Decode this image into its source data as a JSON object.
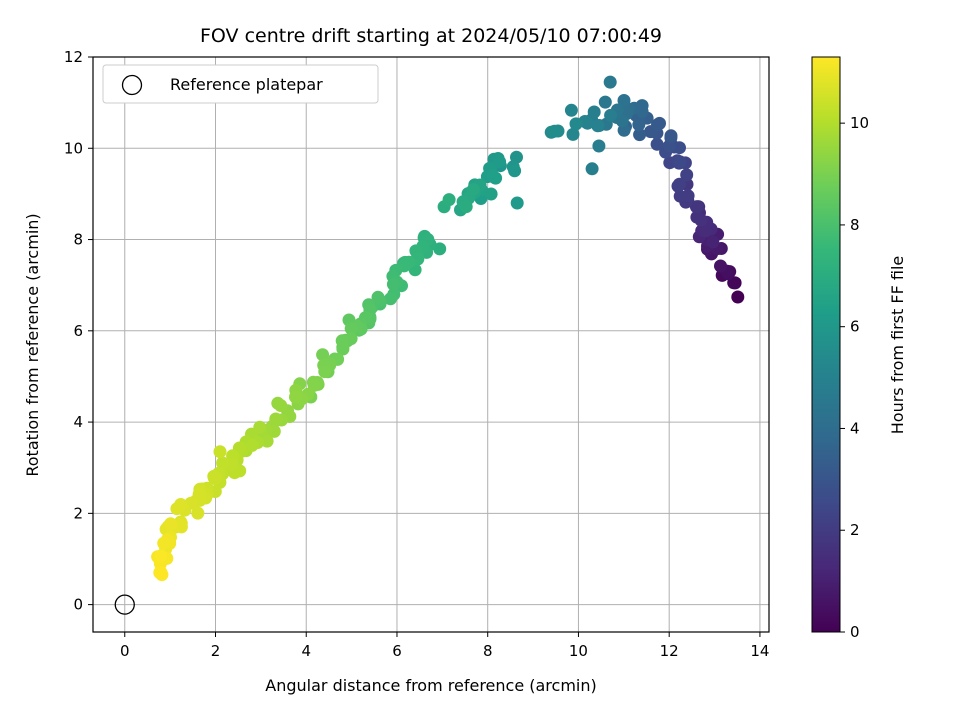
{
  "chart_data": {
    "type": "scatter",
    "title": "FOV centre drift starting at 2024/05/10 07:00:49",
    "xlabel": "Angular distance from reference (arcmin)",
    "ylabel": "Rotation from reference (arcmin)",
    "xlim": [
      -0.7,
      14.2
    ],
    "ylim": [
      -0.6,
      12
    ],
    "xticks": [
      0,
      2,
      4,
      6,
      8,
      10,
      12,
      14
    ],
    "yticks": [
      0,
      2,
      4,
      6,
      8,
      10,
      12
    ],
    "grid": true,
    "legend": {
      "position": "top-left",
      "entries": [
        "Reference platepar"
      ]
    },
    "reference_point": {
      "x": 0,
      "y": 0,
      "marker": "open-circle"
    },
    "colorbar": {
      "label": "Hours from first FF file",
      "colormap": "viridis",
      "range": [
        0,
        11.3
      ],
      "ticks": [
        0,
        2,
        4,
        6,
        8,
        10
      ]
    },
    "viridis_stops": [
      "#440154",
      "#482878",
      "#3e4989",
      "#31688e",
      "#26828e",
      "#1f9e89",
      "#35b779",
      "#6ece58",
      "#b5de2b",
      "#fde725"
    ],
    "segments": [
      {
        "count": 10,
        "x0": 13.45,
        "y0": 6.8,
        "x1": 13.0,
        "y1": 7.7,
        "h0": 0.0,
        "h1": 0.7,
        "jx": 0.2,
        "jy": 0.15
      },
      {
        "count": 10,
        "x0": 13.0,
        "y0": 7.8,
        "x1": 12.7,
        "y1": 8.3,
        "h0": 0.7,
        "h1": 1.4,
        "jx": 0.2,
        "jy": 0.2
      },
      {
        "count": 16,
        "x0": 12.7,
        "y0": 8.4,
        "x1": 12.2,
        "y1": 9.5,
        "h0": 1.4,
        "h1": 2.3,
        "jx": 0.25,
        "jy": 0.25
      },
      {
        "count": 14,
        "x0": 12.3,
        "y0": 9.6,
        "x1": 11.7,
        "y1": 10.4,
        "h0": 2.3,
        "h1": 3.2,
        "jx": 0.25,
        "jy": 0.2
      },
      {
        "count": 20,
        "x0": 11.7,
        "y0": 10.4,
        "x1": 10.7,
        "y1": 10.9,
        "h0": 3.2,
        "h1": 4.5,
        "jx": 0.3,
        "jy": 0.3
      },
      {
        "count": 12,
        "x0": 10.7,
        "y0": 10.6,
        "x1": 9.7,
        "y1": 10.6,
        "h0": 4.5,
        "h1": 5.5,
        "jx": 0.3,
        "jy": 0.3
      },
      {
        "count": 16,
        "x0": 8.5,
        "y0": 9.7,
        "x1": 7.9,
        "y1": 9.2,
        "h0": 5.8,
        "h1": 6.5,
        "jx": 0.25,
        "jy": 0.25
      },
      {
        "count": 10,
        "x0": 7.8,
        "y0": 9.2,
        "x1": 7.2,
        "y1": 8.7,
        "h0": 6.5,
        "h1": 7.1,
        "jx": 0.25,
        "jy": 0.2
      },
      {
        "count": 44,
        "x0": 6.8,
        "y0": 8.0,
        "x1": 4.8,
        "y1": 5.7,
        "h0": 7.1,
        "h1": 8.7,
        "jx": 0.15,
        "jy": 0.22
      },
      {
        "count": 44,
        "x0": 4.8,
        "y0": 5.6,
        "x1": 2.5,
        "y1": 3.2,
        "h0": 8.7,
        "h1": 10.1,
        "jx": 0.15,
        "jy": 0.22
      },
      {
        "count": 36,
        "x0": 2.5,
        "y0": 3.2,
        "x1": 1.0,
        "y1": 1.7,
        "h0": 10.1,
        "h1": 10.9,
        "jx": 0.15,
        "jy": 0.22
      },
      {
        "count": 18,
        "x0": 1.0,
        "y0": 1.7,
        "x1": 0.75,
        "y1": 0.85,
        "h0": 10.9,
        "h1": 11.3,
        "jx": 0.1,
        "jy": 0.2
      }
    ],
    "extra_points": [
      {
        "x": 10.7,
        "y": 11.45,
        "h": 4.6
      },
      {
        "x": 10.3,
        "y": 9.55,
        "h": 4.9
      },
      {
        "x": 10.45,
        "y": 10.05,
        "h": 4.8
      },
      {
        "x": 9.4,
        "y": 10.35,
        "h": 5.4
      },
      {
        "x": 10.2,
        "y": 10.55,
        "h": 5.0
      },
      {
        "x": 8.65,
        "y": 8.8,
        "h": 6.1
      },
      {
        "x": 7.85,
        "y": 8.9,
        "h": 6.3
      },
      {
        "x": 7.4,
        "y": 8.65,
        "h": 6.7
      },
      {
        "x": 4.1,
        "y": 4.55,
        "h": 9.0
      },
      {
        "x": 2.1,
        "y": 3.35,
        "h": 10.4
      },
      {
        "x": 0.8,
        "y": 0.7,
        "h": 11.3
      }
    ]
  }
}
